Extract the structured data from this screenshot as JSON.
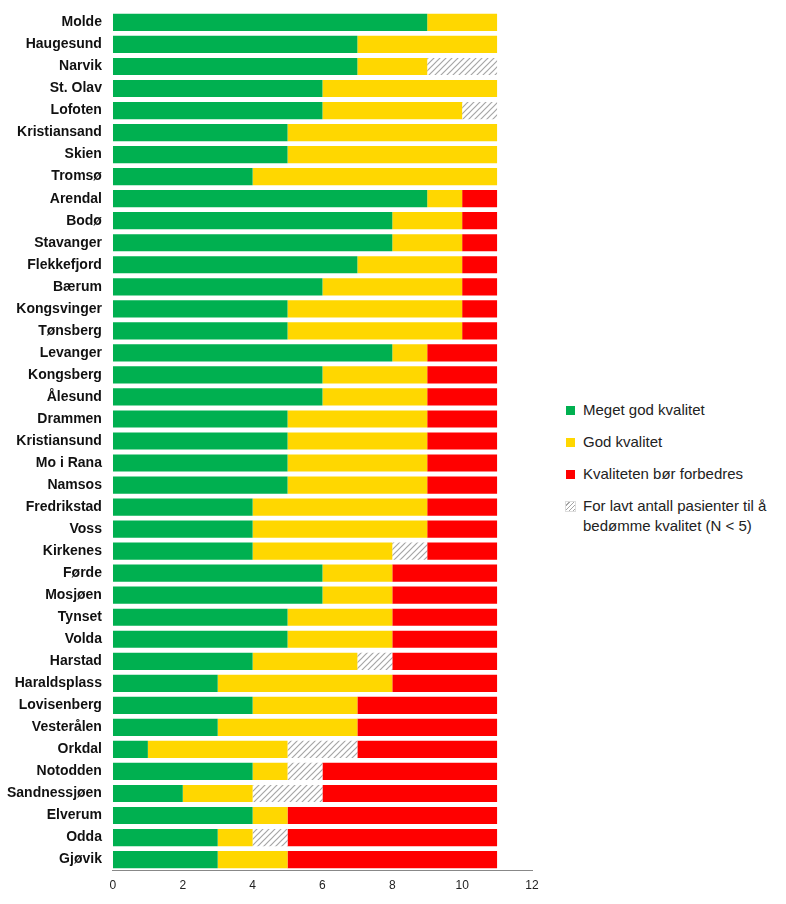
{
  "chart_data": {
    "type": "bar",
    "orientation": "horizontal",
    "stacked": true,
    "grid": false,
    "legend": "right",
    "categories": [
      "Molde",
      "Haugesund",
      "Narvik",
      "St. Olav",
      "Lofoten",
      "Kristiansand",
      "Skien",
      "Tromsø",
      "Arendal",
      "Bodø",
      "Stavanger",
      "Flekkefjord",
      "Bærum",
      "Kongsvinger",
      "Tønsberg",
      "Levanger",
      "Kongsberg",
      "Ålesund",
      "Drammen",
      "Kristiansund",
      "Mo i Rana",
      "Namsos",
      "Fredrikstad",
      "Voss",
      "Kirkenes",
      "Førde",
      "Mosjøen",
      "Tynset",
      "Volda",
      "Harstad",
      "Haraldsplass",
      "Lovisenberg",
      "Vesterålen",
      "Orkdal",
      "Notodden",
      "Sandnessjøen",
      "Elverum",
      "Odda",
      "Gjøvik"
    ],
    "series": [
      {
        "name": "Meget god kvalitet",
        "color": "#00b050",
        "values": [
          9,
          7,
          7,
          6,
          6,
          5,
          5,
          4,
          9,
          8,
          8,
          7,
          6,
          5,
          5,
          8,
          6,
          6,
          5,
          5,
          5,
          5,
          4,
          4,
          4,
          6,
          6,
          5,
          5,
          4,
          3,
          4,
          3,
          1,
          4,
          2,
          4,
          3,
          3
        ]
      },
      {
        "name": "God kvalitet",
        "color": "#ffd700",
        "values": [
          2,
          4,
          2,
          5,
          4,
          6,
          6,
          7,
          1,
          2,
          2,
          3,
          4,
          5,
          5,
          1,
          3,
          3,
          4,
          4,
          4,
          4,
          5,
          5,
          4,
          2,
          2,
          3,
          3,
          3,
          5,
          3,
          4,
          4,
          1,
          2,
          1,
          1,
          2
        ]
      },
      {
        "name": "For lavt antall pasienter til å bedømme kvalitet (N < 5)",
        "color": "#a6a6a6",
        "marker": "hatch",
        "values": [
          0,
          0,
          2,
          0,
          1,
          0,
          0,
          0,
          0,
          0,
          0,
          0,
          0,
          0,
          0,
          0,
          0,
          0,
          0,
          0,
          0,
          0,
          0,
          0,
          1,
          0,
          0,
          0,
          0,
          1,
          0,
          0,
          0,
          2,
          1,
          2,
          0,
          1,
          0
        ]
      },
      {
        "name": "Kvaliteten bør forbedres",
        "color": "#ff0000",
        "values": [
          0,
          0,
          0,
          0,
          0,
          0,
          0,
          0,
          1,
          1,
          1,
          1,
          1,
          1,
          1,
          2,
          2,
          2,
          2,
          2,
          2,
          2,
          2,
          2,
          2,
          3,
          3,
          3,
          3,
          3,
          3,
          4,
          4,
          4,
          5,
          5,
          6,
          6,
          6
        ]
      }
    ],
    "xlim": [
      0,
      12
    ],
    "xticks": [
      0,
      2,
      4,
      6,
      8,
      10,
      12
    ]
  }
}
